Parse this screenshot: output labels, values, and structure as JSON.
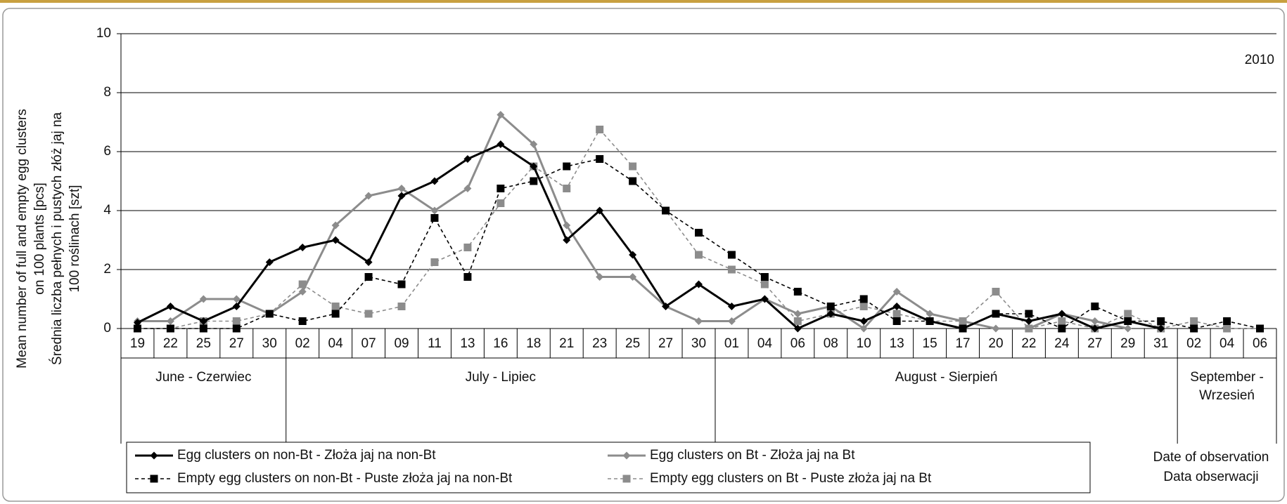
{
  "chart_data": {
    "type": "line",
    "annotation": "2010",
    "y_label": [
      "Mean number of full and empty egg clusters",
      "on 100 plants [pcs]",
      "Średnia liczba pełnych i pustych złóż jaj na",
      "100 roślinach [szt]"
    ],
    "x_label": [
      "Date of observation",
      "Data obserwacji"
    ],
    "category_groups": [
      {
        "label": [
          "June - Czerwiec"
        ],
        "categories": [
          "19",
          "22",
          "25",
          "27",
          "30"
        ]
      },
      {
        "label": [
          "July - Lipiec"
        ],
        "categories": [
          "02",
          "04",
          "07",
          "09",
          "11",
          "13",
          "16",
          "18",
          "21",
          "23",
          "25",
          "27",
          "30"
        ]
      },
      {
        "label": [
          "August - Sierpień"
        ],
        "categories": [
          "01",
          "04",
          "06",
          "08",
          "10",
          "13",
          "15",
          "17",
          "20",
          "22",
          "24",
          "27",
          "29",
          "31"
        ]
      },
      {
        "label": [
          "September -",
          "Wrzesień"
        ],
        "categories": [
          "02",
          "04",
          "06"
        ]
      }
    ],
    "ylim": [
      0,
      10
    ],
    "yticks": [
      0,
      2,
      4,
      6,
      8,
      10
    ],
    "grid": true,
    "series": [
      {
        "name": "Egg clusters on non-Bt - Złoża jaj na non-Bt",
        "color": "#000000",
        "dashed": false,
        "marker": "diamond",
        "values": [
          0.2,
          0.75,
          0.25,
          0.75,
          2.25,
          2.75,
          3,
          2.25,
          4.5,
          5,
          5.75,
          6.25,
          5.5,
          3,
          4,
          2.5,
          0.75,
          1.5,
          0.75,
          1,
          0,
          0.5,
          0.25,
          0.75,
          0.25,
          0,
          0.5,
          0.25,
          0.5,
          0,
          0.25,
          0,
          null,
          null,
          null
        ]
      },
      {
        "name": "Egg clusters on Bt - Złoża jaj na Bt",
        "color": "#8c8c8c",
        "dashed": false,
        "marker": "diamond",
        "values": [
          0.25,
          0.25,
          1,
          1,
          0.5,
          1.25,
          3.5,
          4.5,
          4.75,
          4,
          4.75,
          7.25,
          6.25,
          3.5,
          1.75,
          1.75,
          0.75,
          0.25,
          0.25,
          1,
          0.5,
          0.75,
          0,
          1.25,
          0.5,
          0.25,
          0,
          0,
          0.5,
          0.25,
          0,
          null,
          null,
          null,
          null
        ]
      },
      {
        "name": "Empty egg clusters on non-Bt - Puste złoża jaj na non-Bt",
        "color": "#000000",
        "dashed": true,
        "marker": "square",
        "values": [
          0,
          0,
          0,
          0,
          0.5,
          0.25,
          0.5,
          1.75,
          1.5,
          3.75,
          1.75,
          4.75,
          5,
          5.5,
          5.75,
          5,
          4,
          3.25,
          2.5,
          1.75,
          1.25,
          0.75,
          1,
          0.25,
          0.25,
          0,
          0.5,
          0.5,
          0,
          0.75,
          0.25,
          0.25,
          0,
          0.25,
          0
        ]
      },
      {
        "name": "Empty egg clusters on Bt - Puste złoża jaj na Bt",
        "color": "#8c8c8c",
        "dashed": true,
        "marker": "square",
        "values": [
          0,
          0,
          0.25,
          0.25,
          0.5,
          1.5,
          0.75,
          0.5,
          0.75,
          2.25,
          2.75,
          4.25,
          5.5,
          4.75,
          6.75,
          5.5,
          4,
          2.5,
          2,
          1.5,
          0.25,
          0.5,
          0.75,
          0.5,
          0.25,
          0.25,
          1.25,
          0,
          0.25,
          0,
          0.5,
          0,
          0.25,
          0,
          0
        ]
      }
    ]
  }
}
